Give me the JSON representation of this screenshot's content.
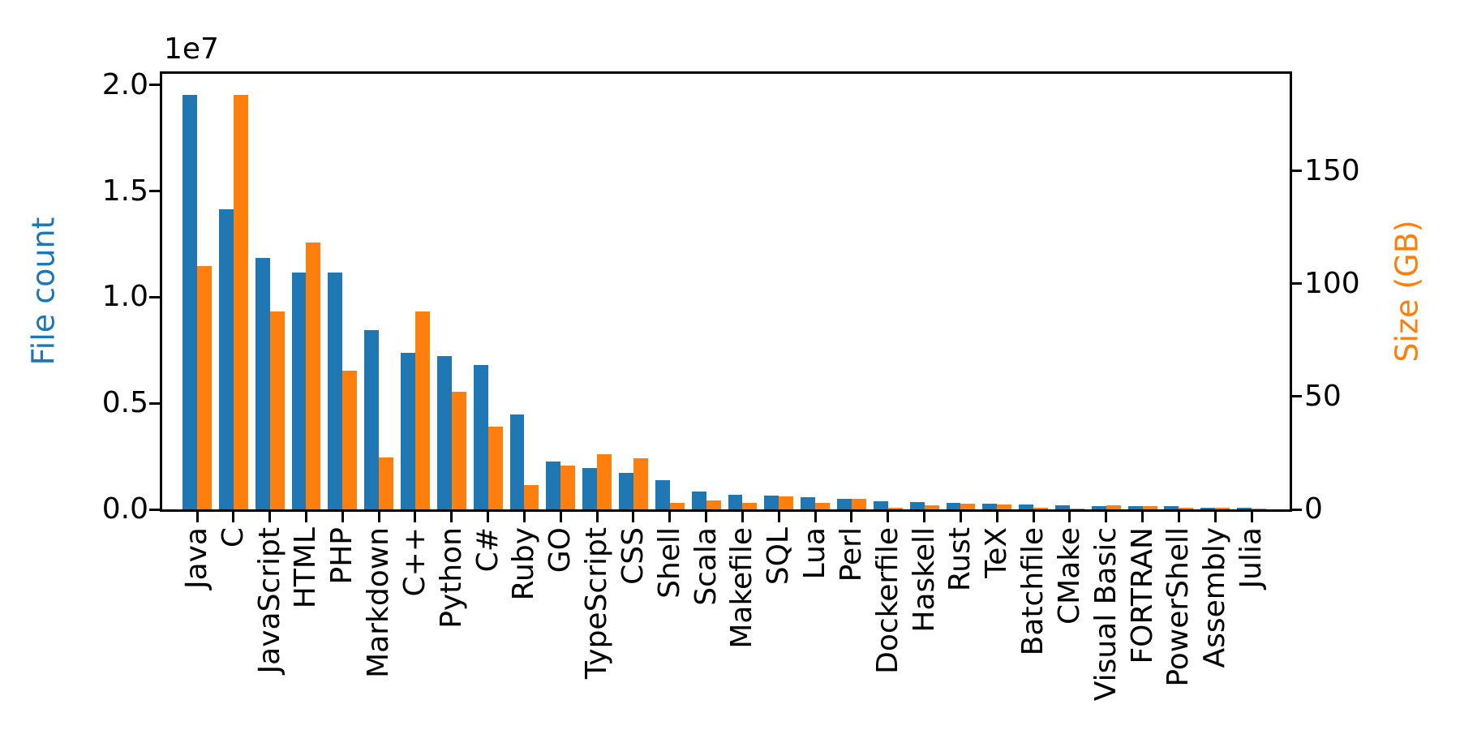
{
  "chart_data": {
    "type": "bar",
    "title": "",
    "grid": false,
    "legend": "none",
    "categories": [
      "Java",
      "C",
      "JavaScript",
      "HTML",
      "PHP",
      "Markdown",
      "C++",
      "Python",
      "C#",
      "Ruby",
      "GO",
      "TypeScript",
      "CSS",
      "Shell",
      "Scala",
      "Makefile",
      "SQL",
      "Lua",
      "Perl",
      "Dockerfile",
      "Haskell",
      "Rust",
      "TeX",
      "Batchfile",
      "CMake",
      "Visual Basic",
      "FORTRAN",
      "PowerShell",
      "Assembly",
      "Julia"
    ],
    "series": [
      {
        "name": "File count",
        "axis": "left",
        "color": "#1f77b4",
        "values": [
          19548190,
          14143113,
          11839883,
          11178557,
          11177610,
          8464626,
          7380520,
          7226626,
          6811652,
          4473331,
          2265436,
          1940406,
          1734406,
          1385648,
          835755,
          679430,
          656671,
          578554,
          497949,
          366505,
          340000,
          322431,
          251015,
          236945,
          175282,
          155652,
          142038,
          136846,
          82905,
          58317
        ]
      },
      {
        "name": "Size (GB)",
        "axis": "right",
        "color": "#ff7f0e",
        "values": [
          107.7,
          183.83,
          87.82,
          118.12,
          61.41,
          23.09,
          87.73,
          52.03,
          36.83,
          10.95,
          19.28,
          24.59,
          22.67,
          3.01,
          3.87,
          2.92,
          5.67,
          2.81,
          4.7,
          0.71,
          1.85,
          2.68,
          2.15,
          0.7,
          0.54,
          1.91,
          1.62,
          0.69,
          0.78,
          0.29
        ]
      }
    ],
    "left_axis": {
      "label": "File count",
      "label_color": "#1f77b4",
      "offset_text": "1e7",
      "tick_labels": [
        "0.0",
        "0.5",
        "1.0",
        "1.5",
        "2.0"
      ],
      "tick_values": [
        0,
        5000000,
        10000000,
        15000000,
        20000000
      ],
      "range": [
        0,
        20530000
      ]
    },
    "right_axis": {
      "label": "Size (GB)",
      "label_color": "#ff7f0e",
      "tick_labels": [
        "0",
        "50",
        "100",
        "150"
      ],
      "tick_values": [
        0,
        50,
        100,
        150
      ],
      "range": [
        0,
        193.0
      ]
    }
  }
}
